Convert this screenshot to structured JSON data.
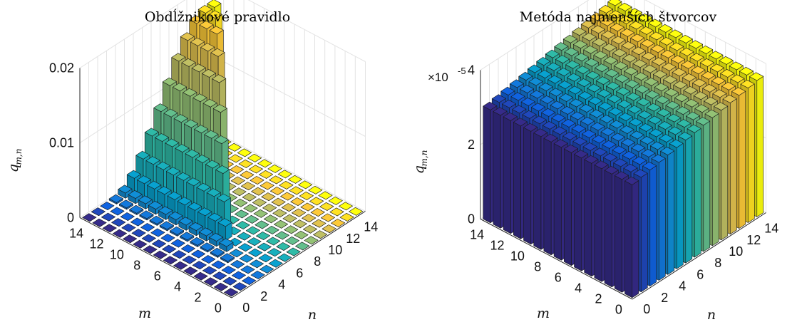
{
  "chart_data": [
    {
      "type": "bar3d",
      "title": "Obdĺžnikové pravidlo",
      "xlabel": "m",
      "ylabel": "n",
      "zlabel": "q",
      "zlabel_sub": "m,n",
      "x_ticks": [
        "0",
        "2",
        "4",
        "6",
        "8",
        "10",
        "12",
        "14"
      ],
      "y_ticks": [
        "0",
        "2",
        "4",
        "6",
        "8",
        "10",
        "12",
        "14"
      ],
      "z_ticks": [
        "0",
        "0.01",
        "0.02"
      ],
      "zlim": [
        0,
        0.02
      ],
      "m_values": [
        1,
        2,
        3,
        4,
        5,
        6,
        7,
        8,
        9,
        10,
        11,
        12,
        13,
        14,
        15
      ],
      "n_values": [
        1,
        2,
        3,
        4,
        5,
        6,
        7,
        8,
        9,
        10,
        11,
        12,
        13,
        14,
        15
      ],
      "values_by_n": [
        0,
        0,
        0,
        0.0002,
        0.0007,
        0.0019,
        0.0037,
        0.006,
        0.0085,
        0.0112,
        0.0137,
        0.0157,
        0.0172,
        0.0178,
        0.0178
      ],
      "values_by_n_unit": "q for m >= n; q = 0 for m < n",
      "colormap": "parula"
    },
    {
      "type": "bar3d",
      "title": "Metóda najmenších štvorcov",
      "xlabel": "m",
      "ylabel": "n",
      "zlabel": "q",
      "zlabel_sub": "m,n",
      "x_ticks": [
        "0",
        "2",
        "4",
        "6",
        "8",
        "10",
        "12",
        "14"
      ],
      "y_ticks": [
        "0",
        "2",
        "4",
        "6",
        "8",
        "10",
        "12",
        "14"
      ],
      "z_ticks": [
        "0",
        "2",
        "4"
      ],
      "z_multiplier": "×10",
      "z_exponent": "-5",
      "zlim": [
        0,
        4e-05
      ],
      "m_values": [
        1,
        2,
        3,
        4,
        5,
        6,
        7,
        8,
        9,
        10,
        11,
        12,
        13,
        14,
        15
      ],
      "n_values": [
        1,
        2,
        3,
        4,
        5,
        6,
        7,
        8,
        9,
        10,
        11,
        12,
        13,
        14,
        15
      ],
      "value_at_n1": 3.03e-05,
      "value_at_n15": 3.66e-05,
      "value_rule": "q grows linearly with n, constant over m",
      "colormap": "parula"
    }
  ]
}
